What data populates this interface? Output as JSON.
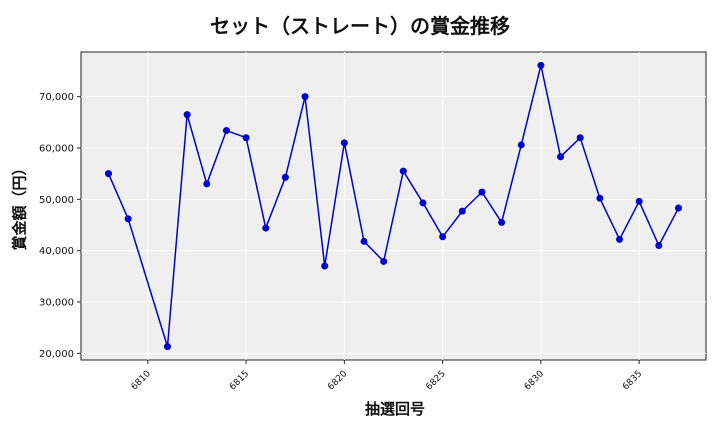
{
  "chart_data": {
    "type": "line",
    "title": "セット（ストレート）の賞金推移",
    "xlabel": "抽選回号",
    "ylabel": "賞金額（円）",
    "x": [
      6808,
      6809,
      6811,
      6812,
      6813,
      6814,
      6815,
      6816,
      6817,
      6818,
      6819,
      6820,
      6821,
      6822,
      6823,
      6824,
      6825,
      6826,
      6827,
      6828,
      6829,
      6830,
      6831,
      6832,
      6833,
      6834,
      6835,
      6836,
      6837
    ],
    "series": [
      {
        "name": "賞金額",
        "color": "#0000cc",
        "marker": "circle",
        "values": [
          55000,
          46200,
          21300,
          66500,
          53000,
          63400,
          62000,
          44400,
          54300,
          70000,
          37000,
          61000,
          41800,
          37900,
          55500,
          49300,
          42700,
          47700,
          51400,
          45500,
          60600,
          76100,
          58300,
          62000,
          50200,
          42200,
          49600,
          41000,
          48300
        ]
      }
    ],
    "xticks": [
      6810,
      6815,
      6820,
      6825,
      6830,
      6835
    ],
    "xtick_labels": [
      "6810",
      "6815",
      "6820",
      "6825",
      "6830",
      "6835"
    ],
    "yticks": [
      20000,
      30000,
      40000,
      50000,
      60000,
      70000
    ],
    "ytick_labels": [
      "20,000",
      "30,000",
      "40,000",
      "50,000",
      "60,000",
      "70,000"
    ],
    "xlim": [
      6806.6,
      6838.4
    ],
    "ylim": [
      18700,
      78700
    ],
    "grid": true,
    "legend": null,
    "background": "#efefef"
  }
}
